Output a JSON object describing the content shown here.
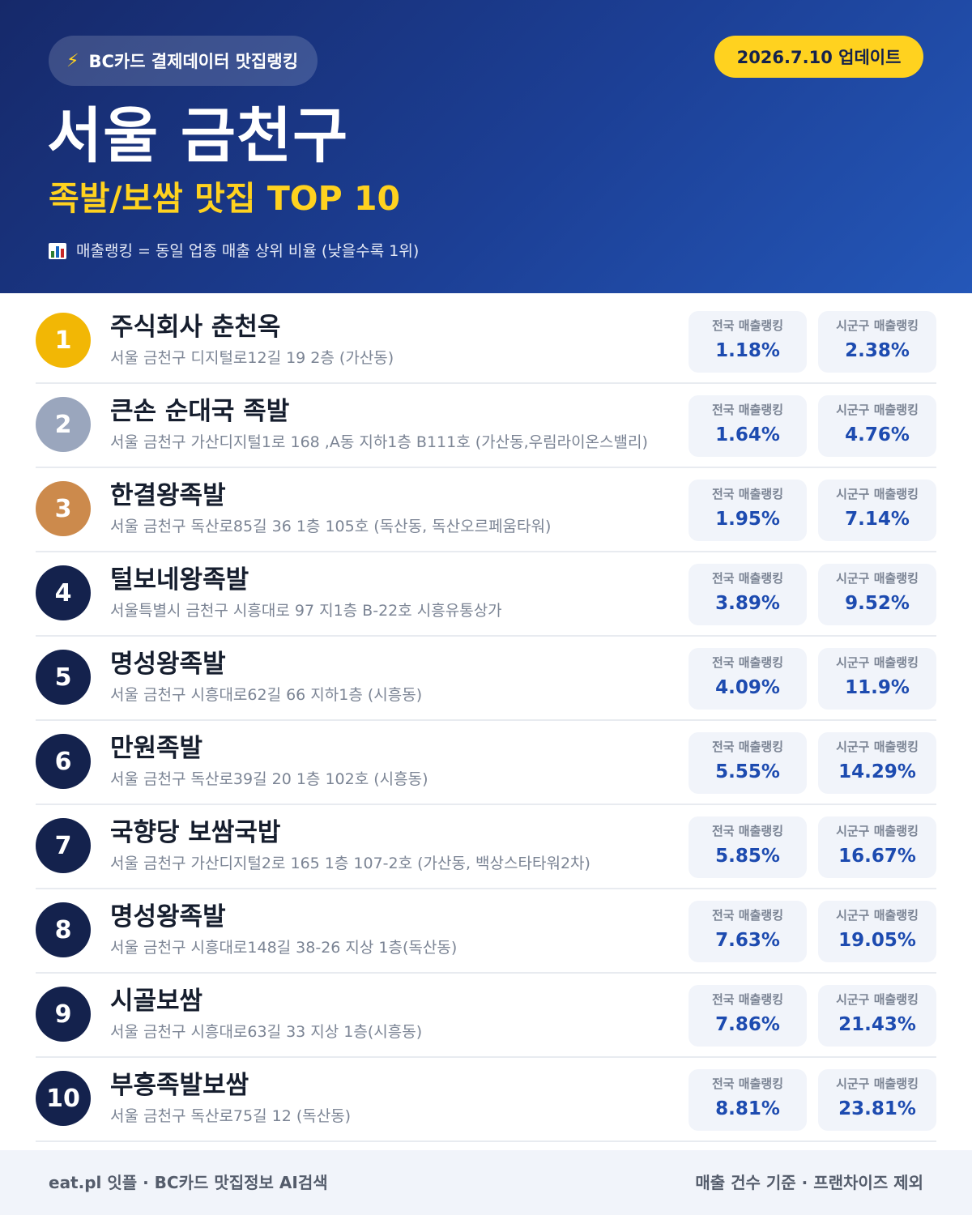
{
  "header": {
    "source_badge": "BC카드 결제데이터 맛집랭킹",
    "source_icon": "lightning-icon",
    "update_badge": "2026.7.10 업데이트",
    "title": "서울 금천구",
    "subtitle": "족발/보쌈 맛집 TOP 10",
    "note": "매출랭킹 = 동일 업종 매출 상위 비율 (낮을수록 1위)",
    "note_icon": "bar-chart-icon"
  },
  "labels": {
    "national": "전국 매출랭킹",
    "district": "시군구 매출랭킹"
  },
  "rank_colors": {
    "gold": "#f2b705",
    "silver": "#9aa6bd",
    "bronze": "#cc8a4c",
    "default": "#14224d"
  },
  "restaurants": [
    {
      "rank": "1",
      "name": "주식회사 춘천옥",
      "address": "서울 금천구 디지털로12길 19 2층 (가산동)",
      "national": "1.18%",
      "district": "2.38%"
    },
    {
      "rank": "2",
      "name": "큰손 순대국 족발",
      "address": "서울 금천구 가산디지털1로 168 ,A동 지하1층 B111호 (가산동,우림라이온스밸리)",
      "national": "1.64%",
      "district": "4.76%"
    },
    {
      "rank": "3",
      "name": "한결왕족발",
      "address": "서울 금천구 독산로85길 36 1층 105호 (독산동, 독산오르페움타워)",
      "national": "1.95%",
      "district": "7.14%"
    },
    {
      "rank": "4",
      "name": "털보네왕족발",
      "address": "서울특별시 금천구 시흥대로 97 지1층 B-22호 시흥유통상가",
      "national": "3.89%",
      "district": "9.52%"
    },
    {
      "rank": "5",
      "name": "명성왕족발",
      "address": "서울 금천구 시흥대로62길 66 지하1층 (시흥동)",
      "national": "4.09%",
      "district": "11.9%"
    },
    {
      "rank": "6",
      "name": "만원족발",
      "address": "서울 금천구 독산로39길 20 1층 102호 (시흥동)",
      "national": "5.55%",
      "district": "14.29%"
    },
    {
      "rank": "7",
      "name": "국향당 보쌈국밥",
      "address": "서울 금천구 가산디지털2로 165 1층 107-2호 (가산동, 백상스타타워2차)",
      "national": "5.85%",
      "district": "16.67%"
    },
    {
      "rank": "8",
      "name": "명성왕족발",
      "address": "서울 금천구 시흥대로148길 38-26 지상 1층(독산동)",
      "national": "7.63%",
      "district": "19.05%"
    },
    {
      "rank": "9",
      "name": "시골보쌈",
      "address": "서울 금천구 시흥대로63길 33 지상 1층(시흥동)",
      "national": "7.86%",
      "district": "21.43%"
    },
    {
      "rank": "10",
      "name": "부흥족발보쌈",
      "address": "서울 금천구 독산로75길 12 (독산동)",
      "national": "8.81%",
      "district": "23.81%"
    }
  ],
  "footer": {
    "left": "eat.pl 잇플 · BC카드 맛집정보 AI검색",
    "right": "매출 건수 기준 · 프랜차이즈 제외"
  }
}
